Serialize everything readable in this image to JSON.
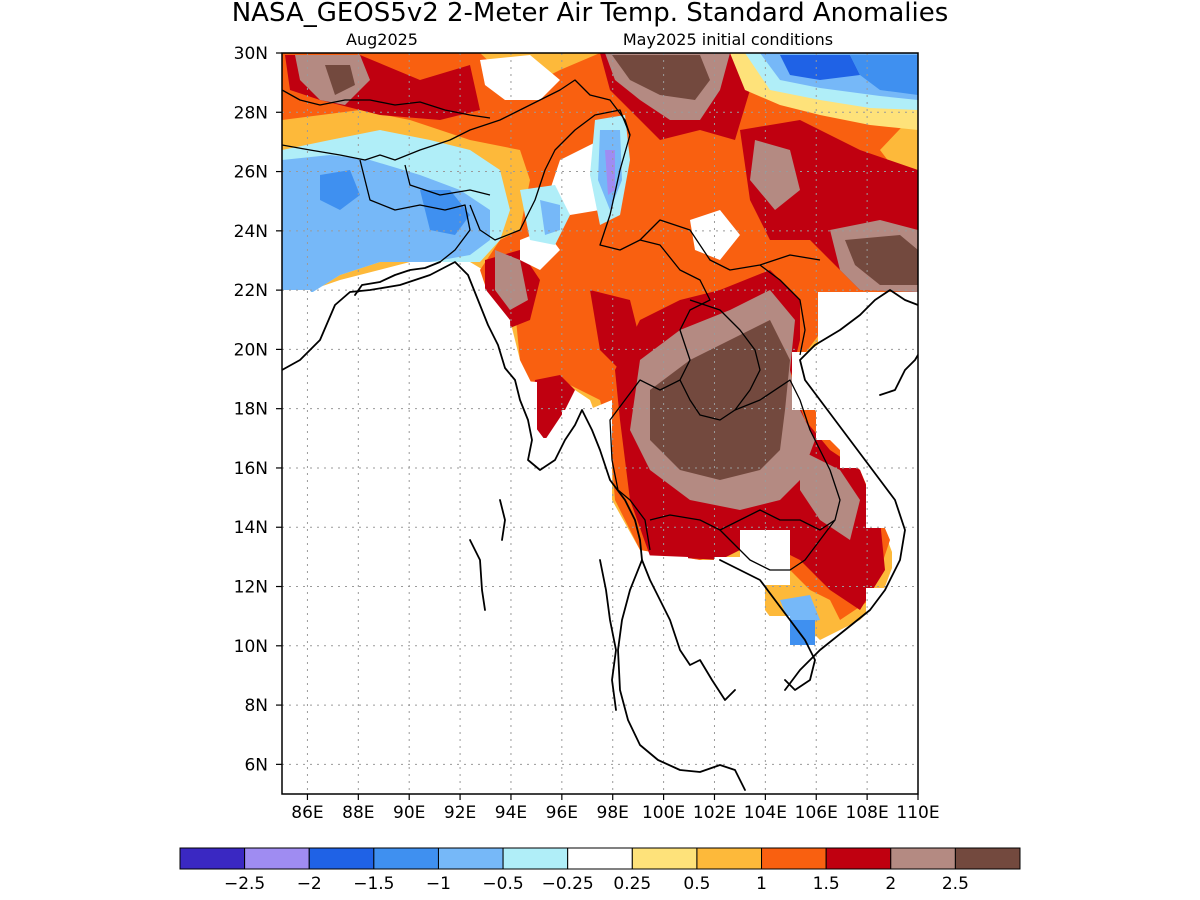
{
  "title": "NASA_GEOS5v2 2-Meter Air Temp. Standard Anomalies",
  "subtitle_left": "Aug2025",
  "subtitle_right": "May2025 initial conditions",
  "lat_ticks": [
    "30N",
    "28N",
    "26N",
    "24N",
    "22N",
    "20N",
    "18N",
    "16N",
    "14N",
    "12N",
    "10N",
    "8N",
    "6N"
  ],
  "lon_ticks": [
    "86E",
    "88E",
    "90E",
    "92E",
    "94E",
    "96E",
    "98E",
    "100E",
    "102E",
    "104E",
    "106E",
    "108E",
    "110E"
  ],
  "colorbar": {
    "colors": [
      "#3a28c2",
      "#9f8cf2",
      "#1f62e6",
      "#3f90f0",
      "#76b8f8",
      "#b0eef8",
      "#ffffff",
      "#fee27a",
      "#fdb93a",
      "#f96010",
      "#c00010",
      "#b48a82",
      "#73493e"
    ],
    "labels": [
      "-2.5",
      "-2",
      "-1.5",
      "-1",
      "-0.5",
      "-0.25",
      "0.25",
      "0.5",
      "1",
      "1.5",
      "2",
      "2.5"
    ]
  }
}
